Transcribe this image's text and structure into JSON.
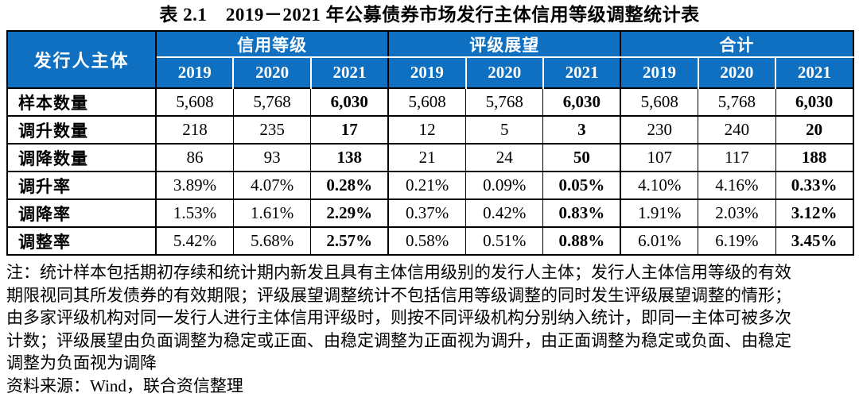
{
  "title": "表 2.1　2019－2021 年公募债券市场发行主体信用等级调整统计表",
  "colors": {
    "header_bg": "#0F70C2",
    "header_text": "#FFFFFF",
    "border": "#000000",
    "body_text": "#000000"
  },
  "table": {
    "corner_header": "发行人主体",
    "groups": [
      {
        "label": "信用等级",
        "years": [
          "2019",
          "2020",
          "2021"
        ]
      },
      {
        "label": "评级展望",
        "years": [
          "2019",
          "2020",
          "2021"
        ]
      },
      {
        "label": "合计",
        "years": [
          "2019",
          "2020",
          "2021"
        ]
      }
    ],
    "bold_columns": [
      2,
      5,
      8
    ],
    "rows": [
      {
        "label": "样本数量",
        "values": [
          "5,608",
          "5,768",
          "6,030",
          "5,608",
          "5,768",
          "6,030",
          "5,608",
          "5,768",
          "6,030"
        ]
      },
      {
        "label": "调升数量",
        "values": [
          "218",
          "235",
          "17",
          "12",
          "5",
          "3",
          "230",
          "240",
          "20"
        ]
      },
      {
        "label": "调降数量",
        "values": [
          "86",
          "93",
          "138",
          "21",
          "24",
          "50",
          "107",
          "117",
          "188"
        ]
      },
      {
        "label": "调升率",
        "values": [
          "3.89%",
          "4.07%",
          "0.28%",
          "0.21%",
          "0.09%",
          "0.05%",
          "4.10%",
          "4.16%",
          "0.33%"
        ]
      },
      {
        "label": "调降率",
        "values": [
          "1.53%",
          "1.61%",
          "2.29%",
          "0.37%",
          "0.42%",
          "0.83%",
          "1.91%",
          "2.03%",
          "3.12%"
        ]
      },
      {
        "label": "调整率",
        "values": [
          "5.42%",
          "5.68%",
          "2.57%",
          "0.58%",
          "0.51%",
          "0.88%",
          "6.01%",
          "6.19%",
          "3.45%"
        ]
      }
    ]
  },
  "notes": {
    "lines": [
      "注：统计样本包括期初存续和统计期内新发且具有主体信用级别的发行人主体；发行人主体信用等级的有效",
      "期限视同其所发债券的有效期限；评级展望调整统计不包括信用等级调整的同时发生评级展望调整的情形；",
      "由多家评级机构对同一发行人进行主体信用评级时，则按不同评级机构分别纳入统计，即同一主体可被多次",
      "计数；评级展望由负面调整为稳定或正面、由稳定调整为正面视为调升，由正面调整为稳定或负面、由稳定",
      "调整为负面视为调降"
    ]
  },
  "source": "资料来源：Wind，联合资信整理"
}
